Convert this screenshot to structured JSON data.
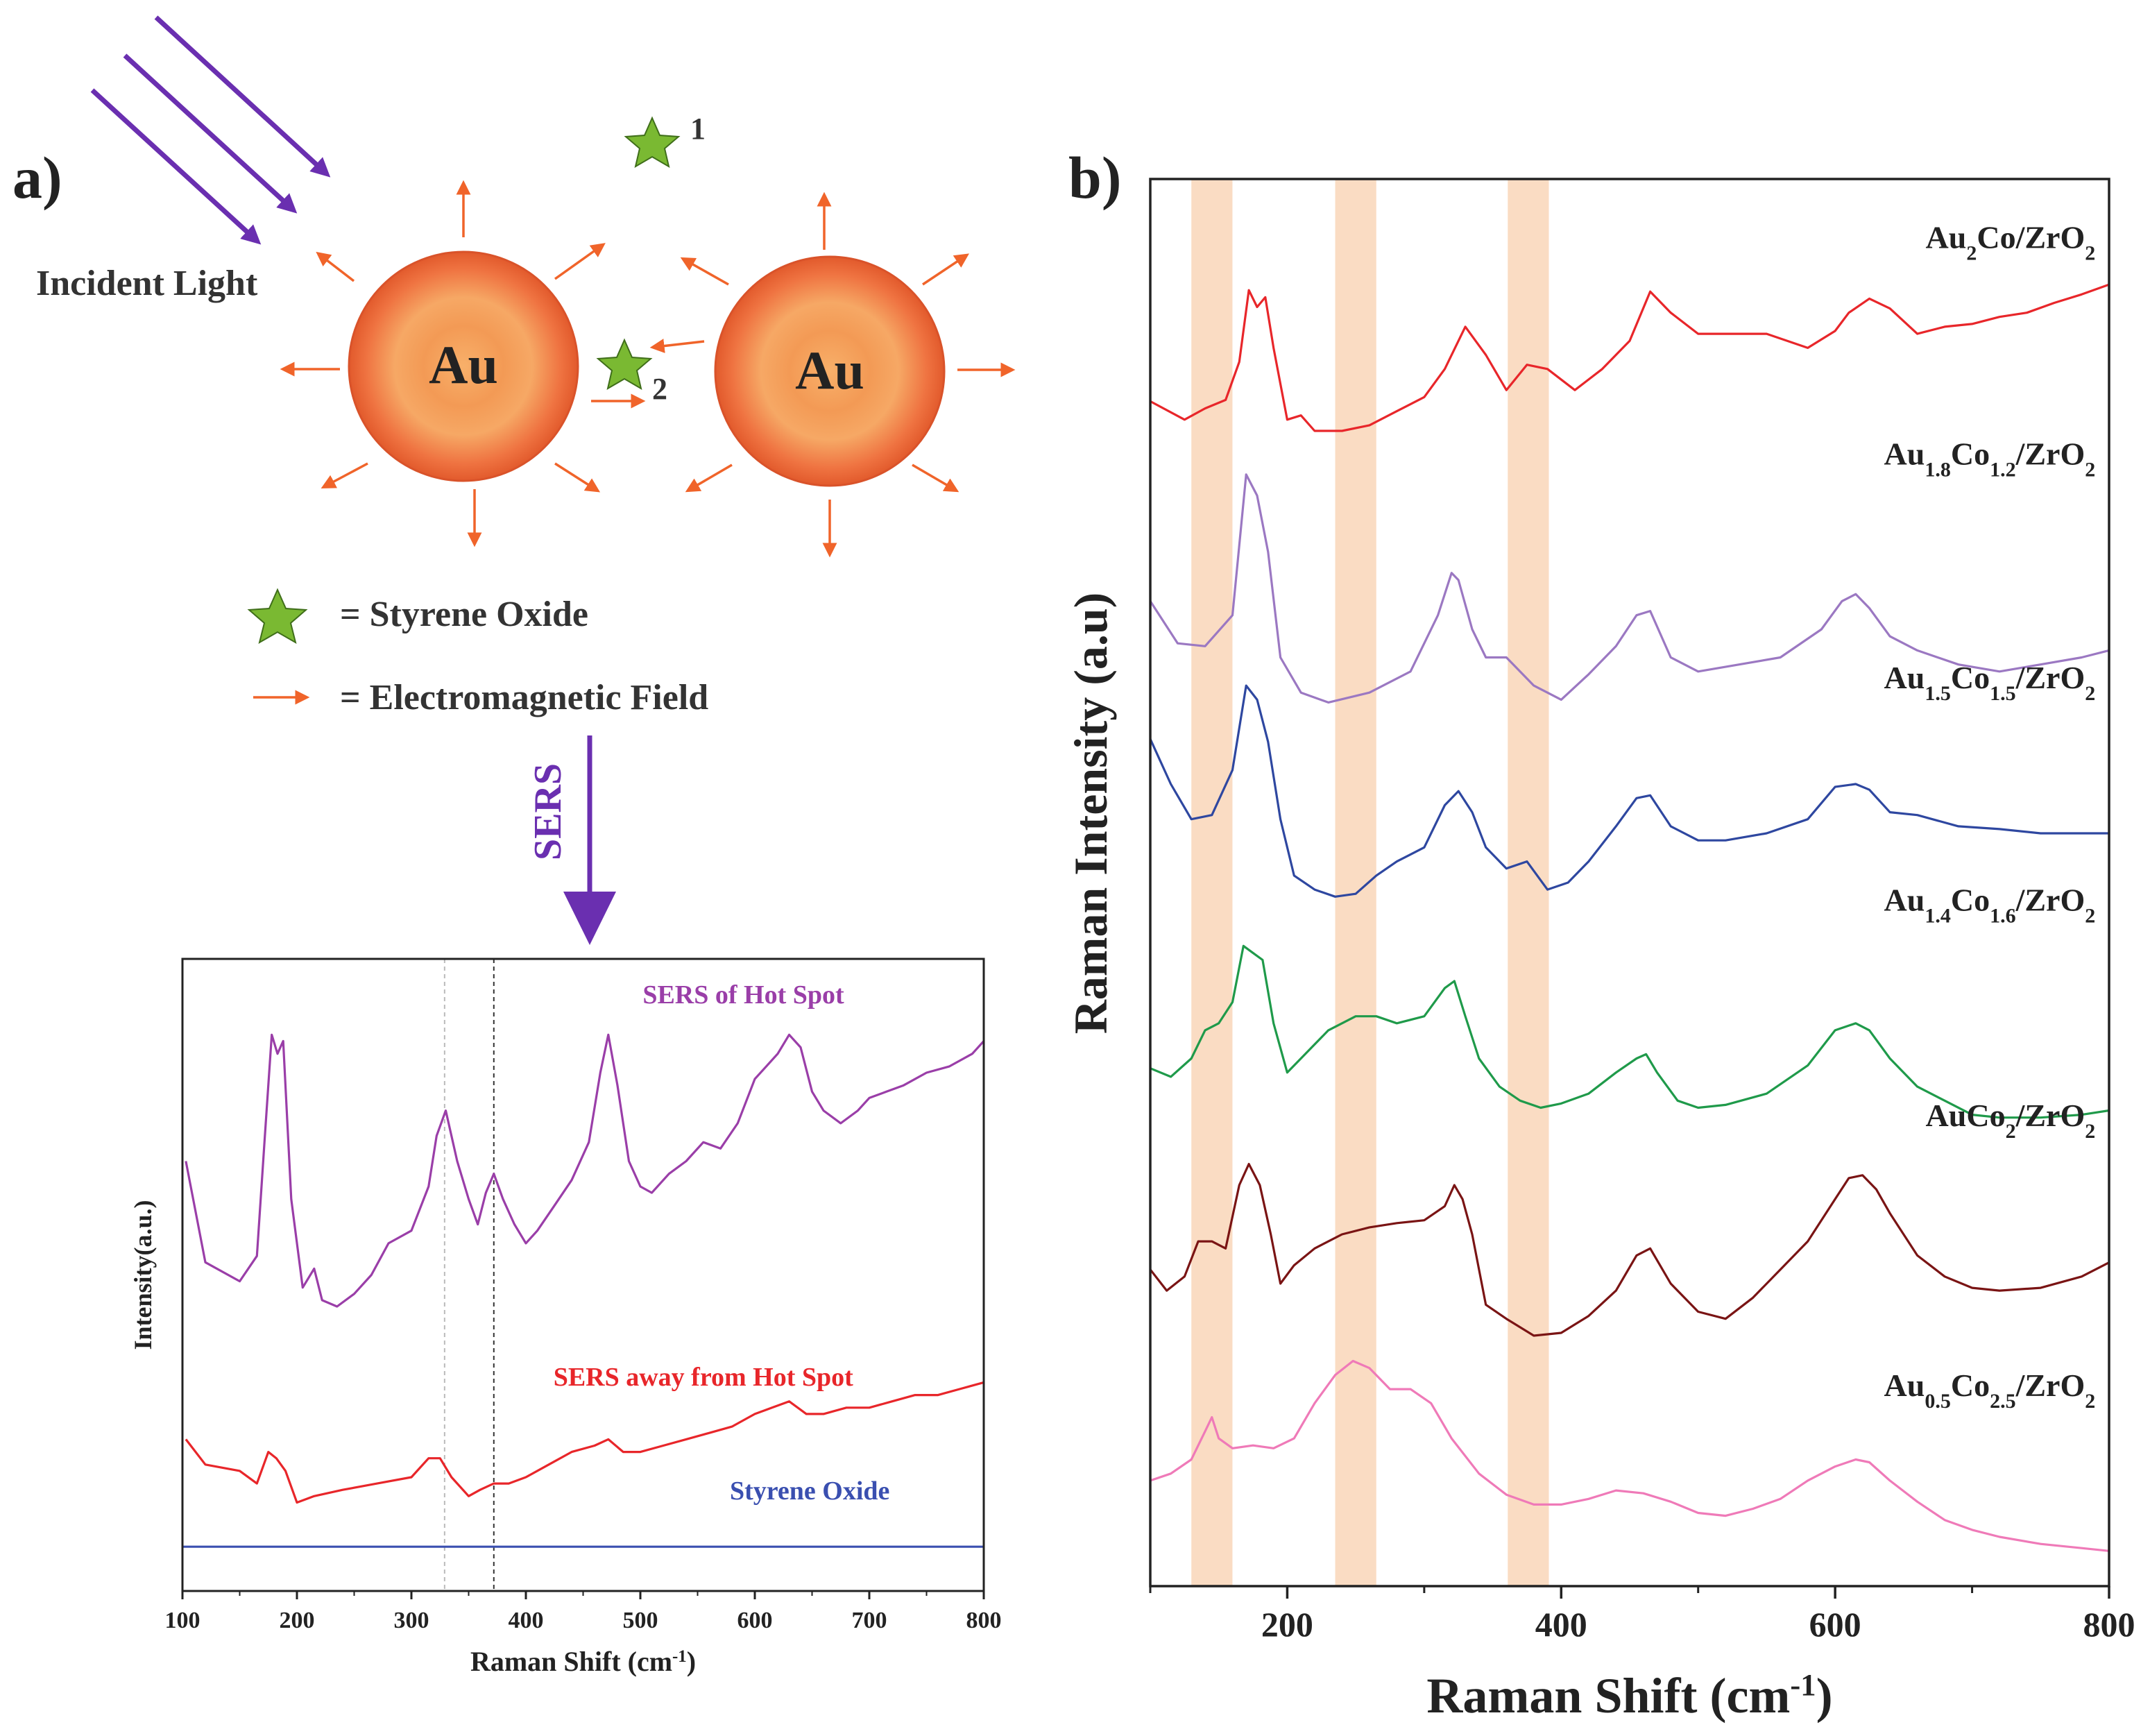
{
  "panel_a": {
    "label": "a)",
    "incident_light": "Incident Light",
    "particle_label": "Au",
    "star_1": "1",
    "star_2": "2",
    "legend_star": "= Styrene Oxide",
    "legend_arrow": "= Electromagnetic Field",
    "sers_label": "SERS"
  },
  "panel_b": {
    "label": "b)"
  },
  "colors": {
    "purple": "#6a2fb0",
    "orange": "#f0642a",
    "star": "#7ab932",
    "band": "#f9d6b8",
    "red": "#e8262a",
    "lilac": "#9b78c2",
    "blue": "#2e47a0",
    "green": "#1f9a4a",
    "maroon": "#7a1414",
    "pink": "#ef7ab8",
    "magenta": "#9a3ea8",
    "inset_blue": "#3a4fb0"
  },
  "chart_data": [
    {
      "id": "inset",
      "type": "line",
      "title": "",
      "xlabel": "Raman Shift (cm",
      "xlabel_sup": "-1",
      "xlabel_tail": ")",
      "ylabel": "Intensity(a.u.)",
      "xlim": [
        100,
        800
      ],
      "xticks": [
        100,
        200,
        300,
        400,
        500,
        600,
        700,
        800
      ],
      "ylim": [
        0,
        1
      ],
      "reference_lines": [
        329,
        372
      ],
      "series": [
        {
          "name": "SERS of Hot Spot",
          "color": "#9a3ea8",
          "label_x": 590,
          "label_y": 0.93,
          "x": [
            103,
            120,
            150,
            165,
            172,
            178,
            183,
            188,
            195,
            205,
            215,
            222,
            235,
            250,
            265,
            280,
            300,
            315,
            322,
            330,
            340,
            350,
            358,
            365,
            372,
            380,
            390,
            400,
            410,
            425,
            440,
            455,
            465,
            472,
            480,
            490,
            500,
            510,
            525,
            540,
            555,
            570,
            585,
            600,
            610,
            620,
            630,
            640,
            650,
            660,
            675,
            690,
            700,
            715,
            730,
            750,
            770,
            790,
            800
          ],
          "y": [
            0.68,
            0.52,
            0.49,
            0.53,
            0.72,
            0.88,
            0.85,
            0.87,
            0.62,
            0.48,
            0.51,
            0.46,
            0.45,
            0.47,
            0.5,
            0.55,
            0.57,
            0.64,
            0.72,
            0.76,
            0.68,
            0.62,
            0.58,
            0.63,
            0.66,
            0.62,
            0.58,
            0.55,
            0.57,
            0.61,
            0.65,
            0.71,
            0.82,
            0.88,
            0.8,
            0.68,
            0.64,
            0.63,
            0.66,
            0.68,
            0.71,
            0.7,
            0.74,
            0.81,
            0.83,
            0.85,
            0.88,
            0.86,
            0.79,
            0.76,
            0.74,
            0.76,
            0.78,
            0.79,
            0.8,
            0.82,
            0.83,
            0.85,
            0.87
          ]
        },
        {
          "name": "SERS away from Hot Spot",
          "color": "#e8262a",
          "label_x": 555,
          "label_y": 0.325,
          "x": [
            103,
            120,
            150,
            165,
            175,
            182,
            190,
            200,
            215,
            240,
            270,
            300,
            315,
            325,
            335,
            350,
            360,
            372,
            385,
            400,
            420,
            440,
            460,
            472,
            485,
            500,
            520,
            540,
            560,
            580,
            600,
            615,
            630,
            645,
            660,
            680,
            700,
            720,
            740,
            760,
            780,
            800
          ],
          "y": [
            0.24,
            0.2,
            0.19,
            0.17,
            0.22,
            0.21,
            0.19,
            0.14,
            0.15,
            0.16,
            0.17,
            0.18,
            0.21,
            0.21,
            0.18,
            0.15,
            0.16,
            0.17,
            0.17,
            0.18,
            0.2,
            0.22,
            0.23,
            0.24,
            0.22,
            0.22,
            0.23,
            0.24,
            0.25,
            0.26,
            0.28,
            0.29,
            0.3,
            0.28,
            0.28,
            0.29,
            0.29,
            0.3,
            0.31,
            0.31,
            0.32,
            0.33
          ]
        },
        {
          "name": "Styrene Oxide",
          "color": "#3a4fb0",
          "label_x": 648,
          "label_y": 0.145,
          "x": [
            100,
            200,
            300,
            400,
            500,
            600,
            700,
            800
          ],
          "y": [
            0.07,
            0.07,
            0.07,
            0.07,
            0.07,
            0.07,
            0.07,
            0.07
          ]
        }
      ]
    },
    {
      "id": "panel_b",
      "type": "line",
      "title": "",
      "xlabel": "Raman Shift (cm",
      "xlabel_sup": "-1",
      "xlabel_tail": ")",
      "ylabel": "Raman Intensity (a.u)",
      "xlim": [
        100,
        800
      ],
      "xticks": [
        200,
        400,
        600,
        800
      ],
      "ylim": [
        0,
        1
      ],
      "highlight_bands": [
        [
          130,
          160
        ],
        [
          235,
          265
        ],
        [
          361,
          391
        ]
      ],
      "series": [
        {
          "name": "Au2Co/ZrO2",
          "label_main": "Au",
          "label_sub1": "2",
          "label_mid": "Co/ZrO",
          "label_sub2": "2",
          "label_x": 790,
          "label_y": 0.951,
          "color": "#e8262a",
          "x": [
            100,
            125,
            140,
            155,
            165,
            172,
            178,
            184,
            190,
            200,
            210,
            220,
            240,
            260,
            280,
            300,
            315,
            330,
            345,
            360,
            375,
            390,
            410,
            430,
            450,
            465,
            480,
            500,
            520,
            550,
            580,
            600,
            610,
            625,
            640,
            660,
            680,
            700,
            720,
            740,
            760,
            780,
            800
          ],
          "y": [
            0.842,
            0.829,
            0.837,
            0.843,
            0.87,
            0.921,
            0.909,
            0.916,
            0.88,
            0.829,
            0.832,
            0.821,
            0.821,
            0.825,
            0.835,
            0.845,
            0.865,
            0.895,
            0.875,
            0.85,
            0.868,
            0.865,
            0.85,
            0.865,
            0.885,
            0.92,
            0.905,
            0.89,
            0.89,
            0.89,
            0.88,
            0.892,
            0.905,
            0.915,
            0.908,
            0.89,
            0.895,
            0.897,
            0.902,
            0.905,
            0.912,
            0.918,
            0.925
          ]
        },
        {
          "name": "Au1.8Co1.2/ZrO2",
          "label_main": "Au",
          "label_sub1": "1.8",
          "label_mid": "Co",
          "label_sub2": "1.2",
          "label_tail": "/ZrO",
          "label_sub3": "2",
          "label_x": 790,
          "label_y": 0.797,
          "color": "#9b78c2",
          "x": [
            100,
            120,
            140,
            160,
            170,
            178,
            186,
            195,
            210,
            230,
            260,
            290,
            310,
            320,
            325,
            335,
            345,
            360,
            380,
            400,
            420,
            440,
            455,
            465,
            480,
            500,
            530,
            560,
            590,
            605,
            615,
            625,
            640,
            660,
            690,
            720,
            750,
            780,
            800
          ],
          "y": [
            0.7,
            0.67,
            0.668,
            0.69,
            0.79,
            0.775,
            0.735,
            0.66,
            0.635,
            0.628,
            0.635,
            0.65,
            0.69,
            0.72,
            0.715,
            0.68,
            0.66,
            0.66,
            0.64,
            0.63,
            0.648,
            0.668,
            0.69,
            0.693,
            0.66,
            0.65,
            0.655,
            0.66,
            0.68,
            0.7,
            0.705,
            0.695,
            0.675,
            0.665,
            0.655,
            0.65,
            0.655,
            0.66,
            0.665
          ]
        },
        {
          "name": "Au1.5Co1.5/ZrO2",
          "label_main": "Au",
          "label_sub1": "1.5",
          "label_mid": "Co",
          "label_sub2": "1.5",
          "label_tail": "/ZrO",
          "label_sub3": "2",
          "label_x": 790,
          "label_y": 0.638,
          "color": "#2e47a0",
          "x": [
            100,
            115,
            130,
            145,
            160,
            170,
            178,
            186,
            195,
            205,
            220,
            235,
            250,
            265,
            280,
            300,
            315,
            325,
            335,
            345,
            360,
            375,
            390,
            405,
            420,
            440,
            455,
            465,
            480,
            500,
            520,
            550,
            580,
            600,
            615,
            625,
            640,
            660,
            690,
            720,
            750,
            780,
            800
          ],
          "y": [
            0.602,
            0.57,
            0.545,
            0.548,
            0.58,
            0.64,
            0.63,
            0.6,
            0.545,
            0.505,
            0.495,
            0.49,
            0.492,
            0.505,
            0.515,
            0.525,
            0.555,
            0.565,
            0.55,
            0.525,
            0.51,
            0.515,
            0.495,
            0.5,
            0.515,
            0.54,
            0.56,
            0.562,
            0.54,
            0.53,
            0.53,
            0.535,
            0.545,
            0.568,
            0.57,
            0.566,
            0.55,
            0.548,
            0.54,
            0.538,
            0.535,
            0.535,
            0.535
          ]
        },
        {
          "name": "Au1.4Co1.6/ZrO2",
          "label_main": "Au",
          "label_sub1": "1.4",
          "label_mid": "Co",
          "label_sub2": "1.6",
          "label_tail": "/ZrO",
          "label_sub3": "2",
          "label_x": 790,
          "label_y": 0.48,
          "color": "#1f9a4a",
          "x": [
            100,
            115,
            130,
            140,
            150,
            160,
            168,
            175,
            182,
            190,
            200,
            215,
            230,
            250,
            265,
            280,
            300,
            315,
            322,
            330,
            340,
            355,
            370,
            385,
            400,
            420,
            440,
            455,
            462,
            470,
            485,
            500,
            520,
            550,
            580,
            600,
            615,
            625,
            640,
            660,
            680,
            700,
            720,
            750,
            780,
            800
          ],
          "y": [
            0.368,
            0.362,
            0.375,
            0.395,
            0.4,
            0.415,
            0.455,
            0.45,
            0.445,
            0.4,
            0.365,
            0.38,
            0.395,
            0.405,
            0.405,
            0.4,
            0.405,
            0.425,
            0.43,
            0.405,
            0.375,
            0.355,
            0.345,
            0.34,
            0.343,
            0.35,
            0.365,
            0.375,
            0.378,
            0.365,
            0.345,
            0.34,
            0.342,
            0.35,
            0.37,
            0.395,
            0.4,
            0.395,
            0.375,
            0.355,
            0.345,
            0.335,
            0.333,
            0.333,
            0.335,
            0.338
          ]
        },
        {
          "name": "AuCo2/ZrO2",
          "label_main": "AuCo",
          "label_sub1": "2",
          "label_mid": "/ZrO",
          "label_sub2": "2",
          "label_x": 790,
          "label_y": 0.327,
          "color": "#7a1414",
          "x": [
            100,
            112,
            125,
            135,
            145,
            155,
            165,
            172,
            180,
            188,
            195,
            205,
            220,
            240,
            260,
            280,
            300,
            315,
            322,
            328,
            335,
            345,
            360,
            380,
            400,
            420,
            440,
            455,
            465,
            480,
            500,
            520,
            540,
            560,
            580,
            600,
            610,
            620,
            630,
            640,
            660,
            680,
            700,
            720,
            750,
            780,
            800
          ],
          "y": [
            0.225,
            0.21,
            0.22,
            0.245,
            0.245,
            0.24,
            0.285,
            0.3,
            0.285,
            0.25,
            0.215,
            0.228,
            0.24,
            0.25,
            0.255,
            0.258,
            0.26,
            0.27,
            0.285,
            0.275,
            0.25,
            0.2,
            0.19,
            0.178,
            0.18,
            0.192,
            0.21,
            0.235,
            0.24,
            0.215,
            0.195,
            0.19,
            0.205,
            0.225,
            0.245,
            0.275,
            0.29,
            0.292,
            0.282,
            0.265,
            0.235,
            0.22,
            0.212,
            0.21,
            0.212,
            0.22,
            0.23
          ]
        },
        {
          "name": "Au0.5Co2.5/ZrO2",
          "label_main": "Au",
          "label_sub1": "0.5",
          "label_mid": "Co",
          "label_sub2": "2.5",
          "label_tail": "/ZrO",
          "label_sub3": "2",
          "label_x": 790,
          "label_y": 0.135,
          "color": "#ef7ab8",
          "x": [
            100,
            115,
            130,
            140,
            145,
            150,
            160,
            175,
            190,
            205,
            220,
            235,
            248,
            260,
            275,
            290,
            305,
            320,
            340,
            360,
            380,
            400,
            420,
            440,
            460,
            480,
            500,
            520,
            540,
            560,
            580,
            600,
            615,
            625,
            640,
            660,
            680,
            700,
            720,
            750,
            780,
            800
          ],
          "y": [
            0.075,
            0.08,
            0.09,
            0.11,
            0.12,
            0.105,
            0.098,
            0.1,
            0.098,
            0.105,
            0.13,
            0.15,
            0.16,
            0.155,
            0.14,
            0.14,
            0.13,
            0.105,
            0.08,
            0.065,
            0.058,
            0.058,
            0.062,
            0.068,
            0.066,
            0.06,
            0.052,
            0.05,
            0.055,
            0.062,
            0.075,
            0.085,
            0.09,
            0.088,
            0.075,
            0.06,
            0.047,
            0.04,
            0.035,
            0.03,
            0.027,
            0.025
          ]
        }
      ]
    }
  ]
}
